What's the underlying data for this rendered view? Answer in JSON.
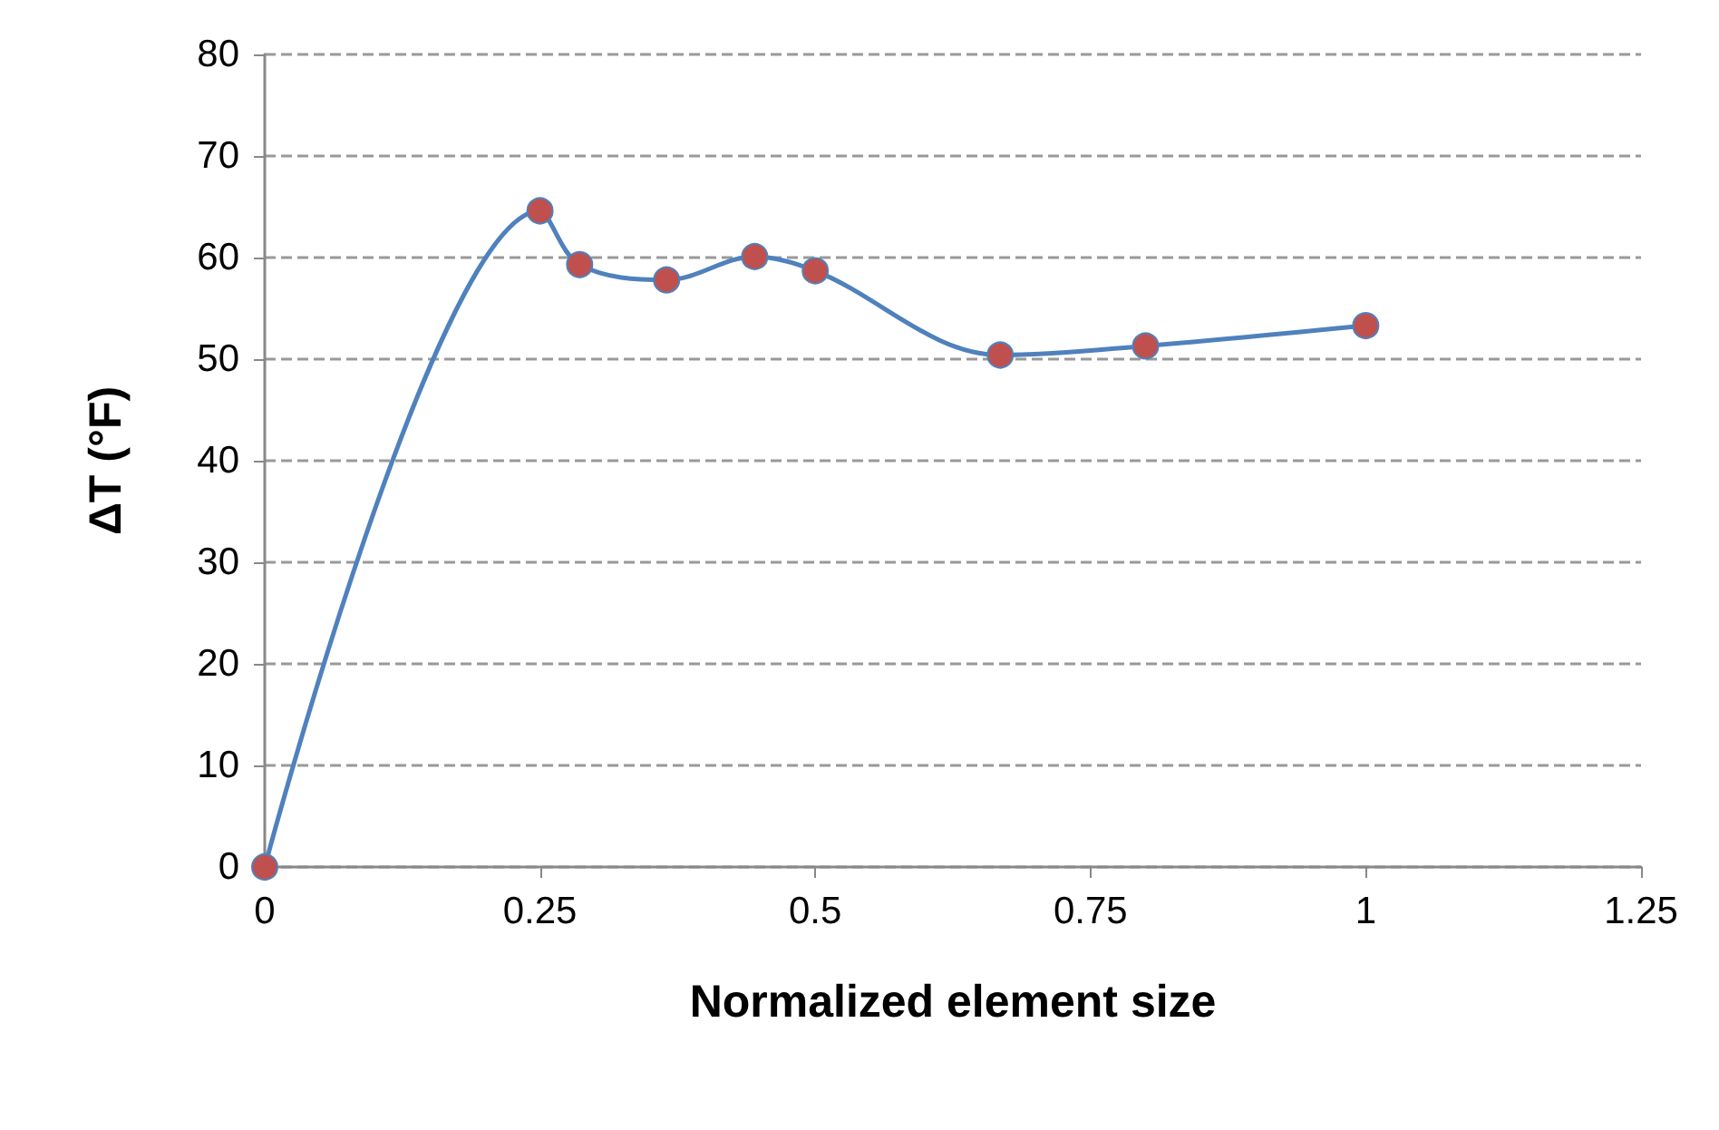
{
  "chart_data": {
    "type": "line",
    "xlabel": "Normalized element size",
    "ylabel": "ΔT (°F)",
    "x": [
      0,
      0.25,
      0.286,
      0.365,
      0.445,
      0.5,
      0.668,
      0.8,
      1.0
    ],
    "series": [
      {
        "color": "#4f81bd",
        "values": [
          0,
          64.6,
          59.3,
          57.8,
          60.1,
          58.7,
          50.4,
          51.3,
          53.3
        ]
      }
    ],
    "marker": "circle",
    "line_style": "solid",
    "grid": "y",
    "xlim": [
      0,
      1.25
    ],
    "xticks": [
      0,
      0.25,
      0.5,
      0.75,
      1,
      1.25
    ],
    "ylim": [
      0,
      80
    ],
    "yticks": [
      0,
      10,
      20,
      30,
      40,
      50,
      60,
      70,
      80
    ]
  }
}
